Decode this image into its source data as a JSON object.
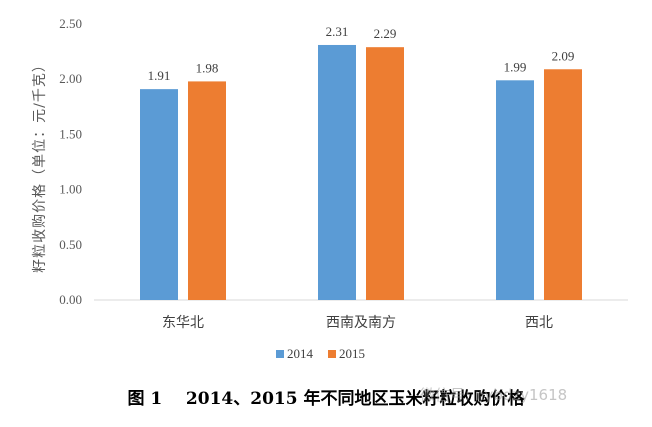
{
  "chart_data": {
    "type": "bar",
    "categories": [
      "东华北",
      "西南及南方",
      "西北"
    ],
    "series": [
      {
        "name": "2014",
        "values": [
          1.91,
          2.31,
          1.99
        ],
        "color": "#5B9BD5"
      },
      {
        "name": "2015",
        "values": [
          1.98,
          2.29,
          2.09
        ],
        "color": "#ED7D31"
      }
    ],
    "data_labels": [
      [
        "1.91",
        "2.31",
        "1.99"
      ],
      [
        "1.98",
        "2.29",
        "2.09"
      ]
    ],
    "ylabel": "籽粒收购价格（单位：元/千克）",
    "ylim": [
      0,
      2.5
    ],
    "yticks": [
      "0.00",
      "0.50",
      "1.00",
      "1.50",
      "2.00",
      "2.50"
    ],
    "grid": false,
    "legend": "bottom"
  },
  "caption": "图 1    2014、2015 年不同地区玉米籽粒收购价格",
  "watermark": "微信号: nybdzy1618"
}
